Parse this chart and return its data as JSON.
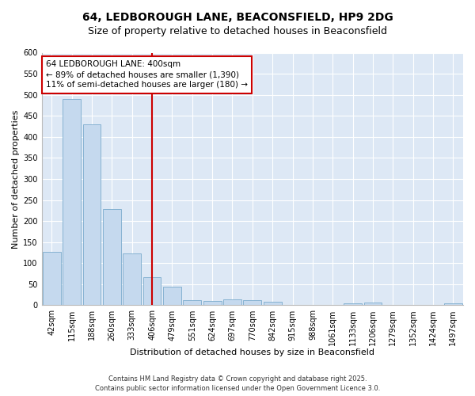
{
  "title": "64, LEDBOROUGH LANE, BEACONSFIELD, HP9 2DG",
  "subtitle": "Size of property relative to detached houses in Beaconsfield",
  "xlabel": "Distribution of detached houses by size in Beaconsfield",
  "ylabel": "Number of detached properties",
  "categories": [
    "42sqm",
    "115sqm",
    "188sqm",
    "260sqm",
    "333sqm",
    "406sqm",
    "479sqm",
    "551sqm",
    "624sqm",
    "697sqm",
    "770sqm",
    "842sqm",
    "915sqm",
    "988sqm",
    "1061sqm",
    "1133sqm",
    "1206sqm",
    "1279sqm",
    "1352sqm",
    "1424sqm",
    "1497sqm"
  ],
  "values": [
    127,
    490,
    430,
    228,
    123,
    67,
    45,
    13,
    10,
    14,
    13,
    8,
    0,
    0,
    0,
    5,
    6,
    0,
    0,
    0,
    4
  ],
  "bar_color": "#c5d9ee",
  "bar_edge_color": "#7aabcc",
  "vline_x_index": 5,
  "vline_color": "#cc0000",
  "annotation_text": "64 LEDBOROUGH LANE: 400sqm\n← 89% of detached houses are smaller (1,390)\n11% of semi-detached houses are larger (180) →",
  "annotation_box_facecolor": "#ffffff",
  "annotation_box_edgecolor": "#cc0000",
  "ylim": [
    0,
    600
  ],
  "yticks": [
    0,
    50,
    100,
    150,
    200,
    250,
    300,
    350,
    400,
    450,
    500,
    550,
    600
  ],
  "footer_text": "Contains HM Land Registry data © Crown copyright and database right 2025.\nContains public sector information licensed under the Open Government Licence 3.0.",
  "fig_bg_color": "#ffffff",
  "plot_bg_color": "#dde8f5",
  "grid_color": "#ffffff",
  "title_fontsize": 10,
  "subtitle_fontsize": 9,
  "axis_label_fontsize": 8,
  "tick_fontsize": 7,
  "annotation_fontsize": 7.5,
  "footer_fontsize": 6
}
